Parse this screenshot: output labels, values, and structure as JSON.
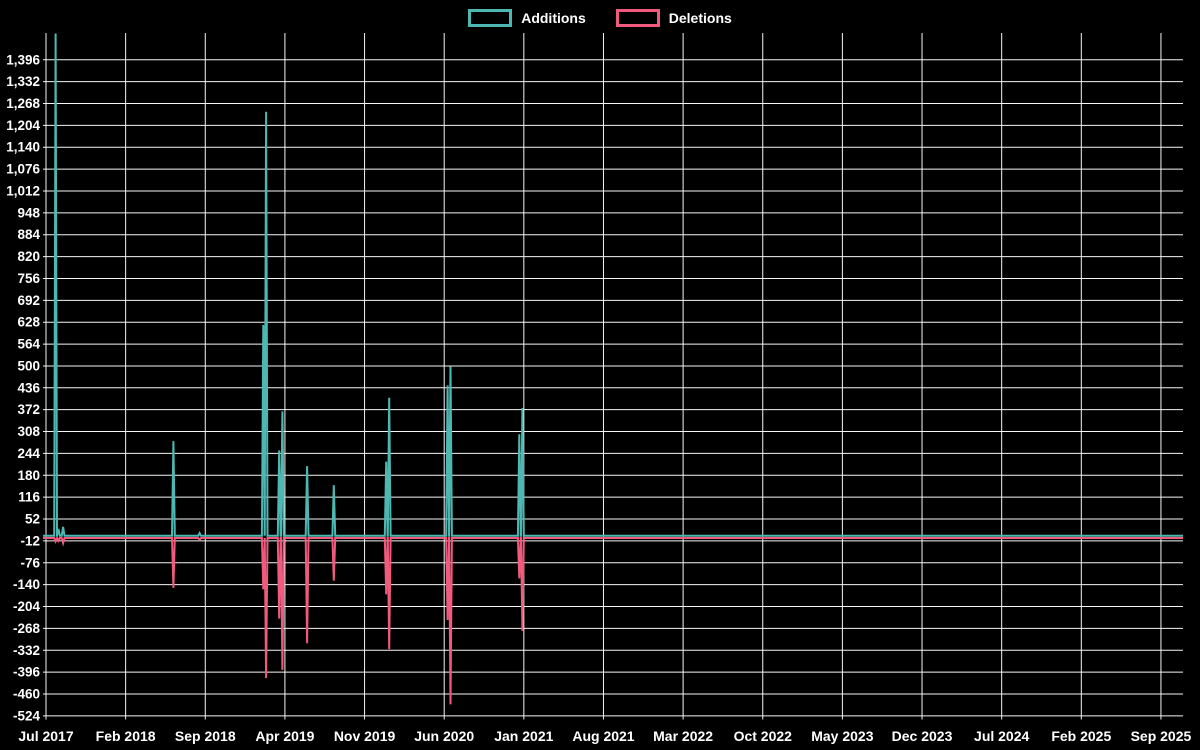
{
  "legend": {
    "items": [
      {
        "label": "Additions",
        "color": "#4DB8B2"
      },
      {
        "label": "Deletions",
        "color": "#EF5A7D"
      }
    ]
  },
  "chart_data": {
    "type": "line",
    "title": "",
    "description": "Weekly code additions (positive spikes) and deletions (negative spikes) over time; both series flat at 0 between spikes and after Jan 2021",
    "legend_position": "top",
    "grid": true,
    "colors": {
      "background": "#000000",
      "grid": "#F5F5F5",
      "text": "#FFFFFF",
      "additions": "#4DB8B2",
      "deletions": "#EF5A7D"
    },
    "x_axis": {
      "tick_labels": [
        "Jul 2017",
        "Feb 2018",
        "Sep 2018",
        "Apr 2019",
        "Nov 2019",
        "Jun 2020",
        "Jan 2021",
        "Aug 2021",
        "Mar 2022",
        "Oct 2022",
        "May 2023",
        "Dec 2023",
        "Jul 2024",
        "Feb 2025",
        "Sep 2025"
      ],
      "tick_interval_months": 7,
      "end_months_from_start": 99.9
    },
    "y_axis": {
      "tick_labels": [
        "1,396",
        "1,332",
        "1,268",
        "1,204",
        "1,140",
        "1,076",
        "1,012",
        "948",
        "884",
        "820",
        "756",
        "692",
        "628",
        "564",
        "500",
        "436",
        "372",
        "308",
        "244",
        "180",
        "116",
        "52",
        "-12",
        "-76",
        "-140",
        "-204",
        "-268",
        "-332",
        "-396",
        "-460",
        "-524"
      ],
      "tick_step": 64,
      "axis_max_clip": 1473,
      "axis_min": -524
    },
    "series": [
      {
        "name": "Additions",
        "baseline": 0
      },
      {
        "name": "Deletions",
        "baseline": 0
      }
    ],
    "points": [
      {
        "date_approx": "late Jul 2017",
        "months_from_start": 0.84,
        "additions": 1470,
        "deletions": -10
      },
      {
        "date_approx": "early Aug 2017",
        "months_from_start": 1.1,
        "additions": 20,
        "deletions": -8
      },
      {
        "date_approx": "mid Aug 2017",
        "months_from_start": 1.5,
        "additions": 26,
        "deletions": -15
      },
      {
        "date_approx": "mid Jun 2018",
        "months_from_start": 11.2,
        "additions": 277,
        "deletions": -146
      },
      {
        "date_approx": "mid Aug 2018",
        "months_from_start": 13.5,
        "additions": 8,
        "deletions": -5
      },
      {
        "date_approx": "early Feb 2019",
        "months_from_start": 19.1,
        "additions": 617,
        "deletions": -150
      },
      {
        "date_approx": "mid Feb 2019",
        "months_from_start": 19.35,
        "additions": 1241,
        "deletions": -410
      },
      {
        "date_approx": "mid Mar 2019",
        "months_from_start": 20.5,
        "additions": 250,
        "deletions": -236
      },
      {
        "date_approx": "late Mar 2019",
        "months_from_start": 20.78,
        "additions": 364,
        "deletions": -386
      },
      {
        "date_approx": "late May 2019",
        "months_from_start": 22.95,
        "additions": 204,
        "deletions": -308
      },
      {
        "date_approx": "mid Aug 2019",
        "months_from_start": 25.3,
        "additions": 148,
        "deletions": -125
      },
      {
        "date_approx": "late Dec 2019",
        "months_from_start": 29.9,
        "additions": 217,
        "deletions": -165
      },
      {
        "date_approx": "early Jan 2020",
        "months_from_start": 30.17,
        "additions": 404,
        "deletions": -325
      },
      {
        "date_approx": "mid Jun 2020",
        "months_from_start": 35.3,
        "additions": 440,
        "deletions": -240
      },
      {
        "date_approx": "mid Jun 2020",
        "months_from_start": 35.55,
        "additions": 495,
        "deletions": -487
      },
      {
        "date_approx": "mid Dec 2020",
        "months_from_start": 41.6,
        "additions": 297,
        "deletions": -118
      },
      {
        "date_approx": "late Dec 2020",
        "months_from_start": 41.87,
        "additions": 374,
        "deletions": -272
      }
    ]
  }
}
